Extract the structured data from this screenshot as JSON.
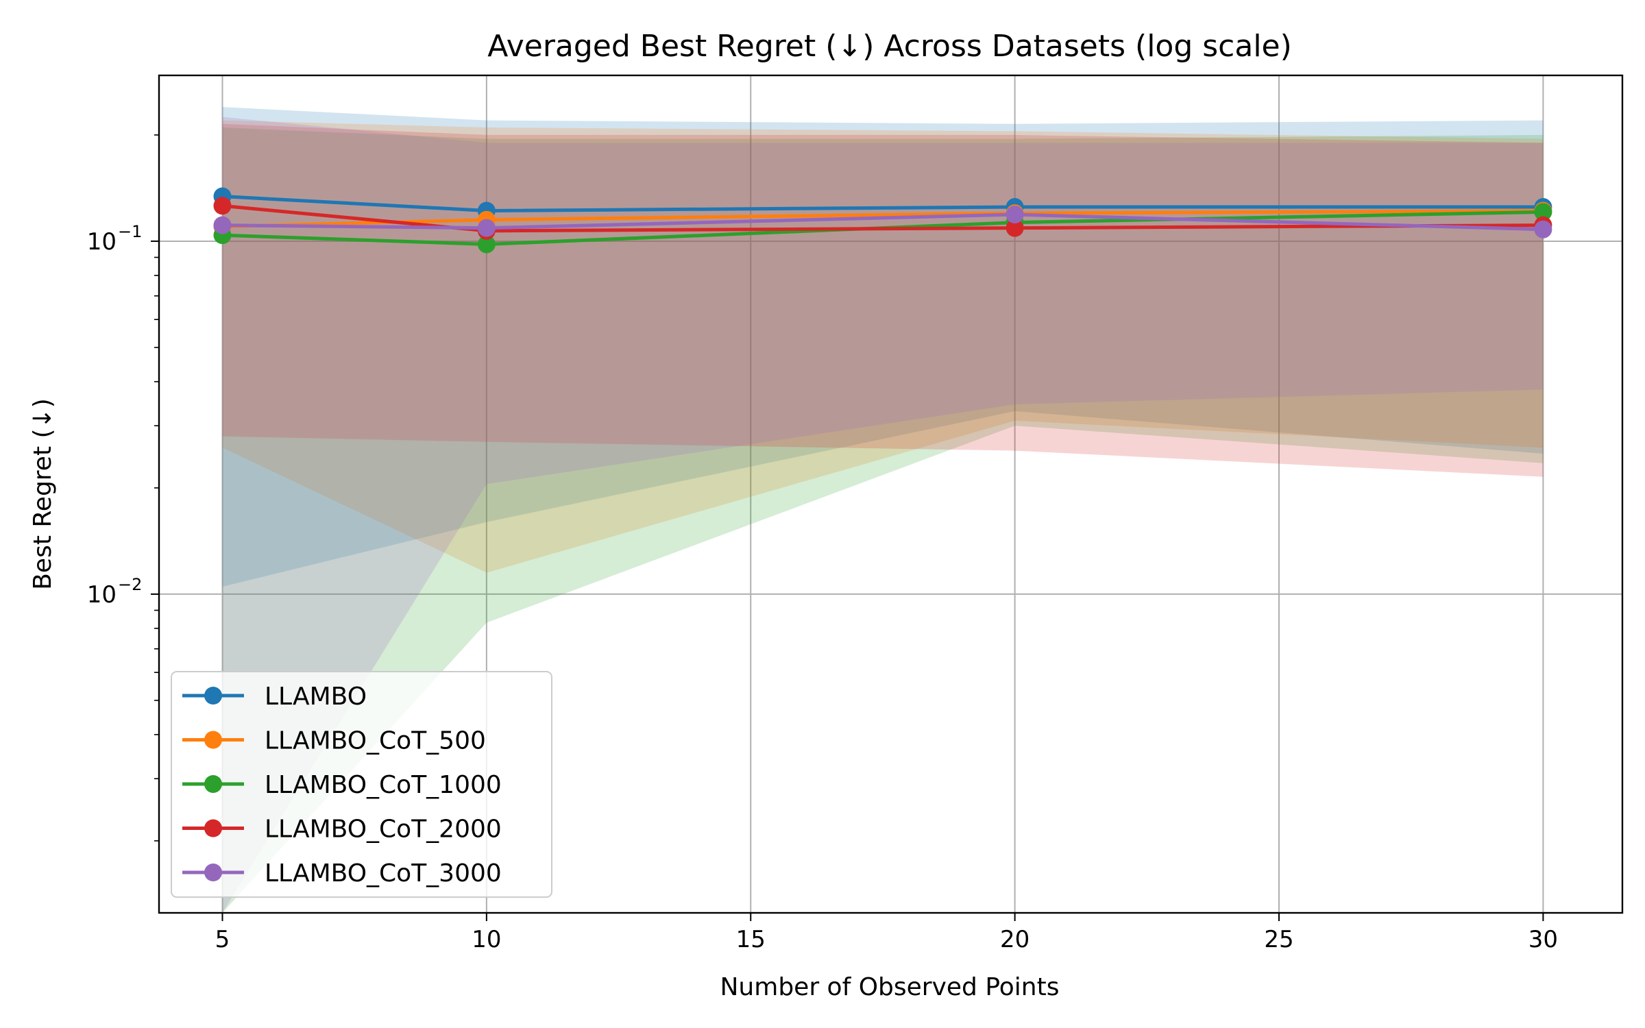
{
  "chart_data": {
    "type": "line",
    "title": "Averaged Best Regret (↓) Across Datasets (log scale)",
    "xlabel": "Number of Observed Points",
    "ylabel": "Best Regret (↓)",
    "x": [
      5,
      10,
      20,
      30
    ],
    "xlim": [
      3.8,
      31.5
    ],
    "ylim": [
      0.00125,
      0.295
    ],
    "yscale": "log",
    "xticks": [
      5,
      10,
      15,
      20,
      25,
      30
    ],
    "yticks": [
      {
        "value": 0.1,
        "base": "10",
        "exp": "−1"
      },
      {
        "value": 0.01,
        "base": "10",
        "exp": "−2"
      }
    ],
    "grid": true,
    "legend_position": "lower-left",
    "series": [
      {
        "name": "LLAMBO",
        "color": "#1f77b4",
        "values": [
          0.134,
          0.122,
          0.125,
          0.125
        ],
        "band_upper": [
          0.24,
          0.22,
          0.215,
          0.22
        ],
        "band_lower": [
          0.0105,
          0.016,
          0.033,
          0.025
        ]
      },
      {
        "name": "LLAMBO_CoT_500",
        "color": "#ff7f0e",
        "values": [
          0.11,
          0.115,
          0.12,
          0.122
        ],
        "band_upper": [
          0.22,
          0.21,
          0.205,
          0.195
        ],
        "band_lower": [
          0.026,
          0.0115,
          0.031,
          0.026
        ]
      },
      {
        "name": "LLAMBO_CoT_1000",
        "color": "#2ca02c",
        "values": [
          0.104,
          0.098,
          0.113,
          0.121
        ],
        "band_upper": [
          0.21,
          0.195,
          0.195,
          0.2
        ],
        "band_lower": [
          0.0012,
          0.0083,
          0.03,
          0.0235
        ]
      },
      {
        "name": "LLAMBO_CoT_2000",
        "color": "#d62728",
        "values": [
          0.126,
          0.107,
          0.109,
          0.111
        ],
        "band_upper": [
          0.215,
          0.2,
          0.2,
          0.19
        ],
        "band_lower": [
          0.028,
          0.027,
          0.0255,
          0.0215
        ]
      },
      {
        "name": "LLAMBO_CoT_3000",
        "color": "#9467bd",
        "values": [
          0.111,
          0.109,
          0.119,
          0.108
        ],
        "band_upper": [
          0.225,
          0.19,
          0.19,
          0.19
        ],
        "band_lower": [
          0.0012,
          0.0205,
          0.0345,
          0.038
        ]
      }
    ]
  }
}
